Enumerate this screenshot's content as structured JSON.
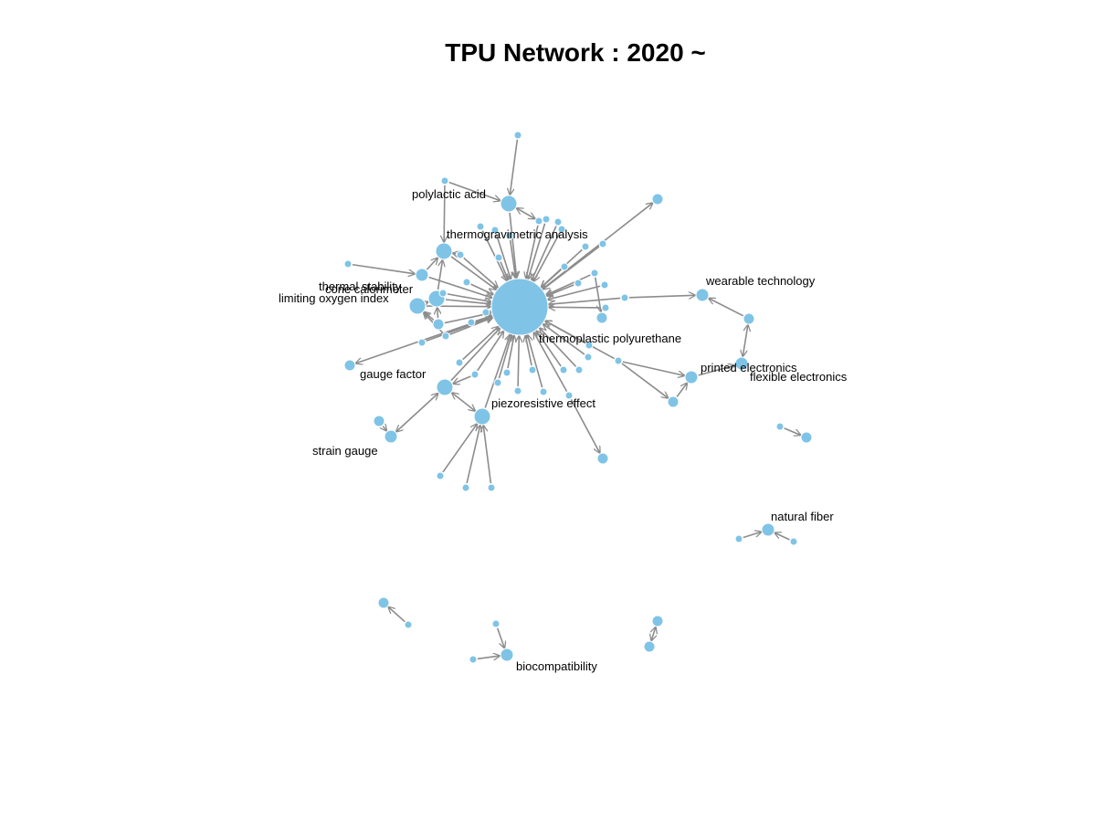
{
  "title": "TPU Network : 2020 ~",
  "colors": {
    "node": "#7fc4e6",
    "node_stroke": "#ffffff",
    "edge": "#8c8c8c",
    "label": "#000000"
  },
  "labels": {
    "tpu": "thermoplastic polyurethane",
    "pla": "polylactic acid",
    "tga": "thermogravimetric analysis",
    "ts": "thermal stability",
    "cc": "cone calorimeter",
    "loi": "limiting oxygen index",
    "gf": "gauge factor",
    "sg": "strain gauge",
    "pe": "piezoresistive effect",
    "wt": "wearable technology",
    "prt": "printed electronics",
    "fe": "flexible electronics",
    "nf": "natural fiber",
    "bio": "biocompatibility"
  }
}
